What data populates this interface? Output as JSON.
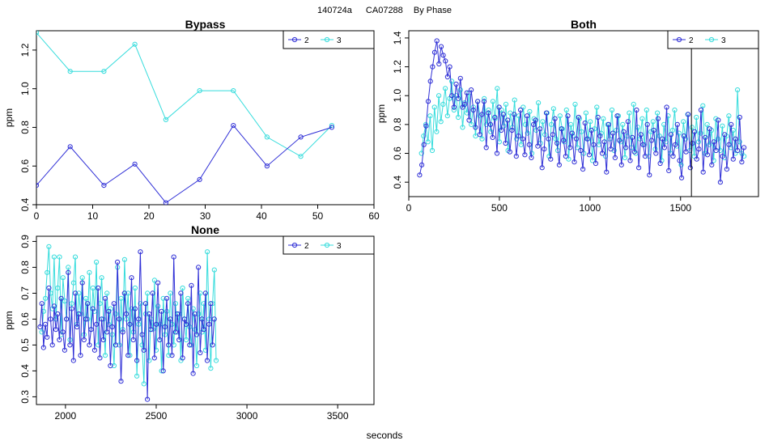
{
  "figure": {
    "run_id": "140724a",
    "unit_id": "CA07288",
    "group_label": "By Phase",
    "xlabel": "seconds",
    "legend_order": [
      "2",
      "3"
    ]
  },
  "colors": {
    "series_2": "#2f2fd6",
    "series_3": "#35dcdc",
    "axes": "#000000"
  },
  "chart_data": [
    {
      "type": "line",
      "title": "Bypass",
      "xlabel": "",
      "ylabel": "ppm",
      "xlim": [
        0,
        60
      ],
      "ylim": [
        0.4,
        1.3
      ],
      "xticks": [
        0,
        10,
        20,
        30,
        40,
        50,
        60
      ],
      "yticks": [
        0.4,
        0.6,
        0.8,
        1.0,
        1.2
      ],
      "legend": "top-right",
      "series": [
        {
          "name": "2",
          "x": [
            0,
            6,
            12,
            17.5,
            23,
            29,
            35,
            41,
            47,
            52.5
          ],
          "y": [
            0.5,
            0.7,
            0.5,
            0.61,
            0.41,
            0.53,
            0.81,
            0.6,
            0.75,
            0.8
          ]
        },
        {
          "name": "3",
          "x": [
            0,
            6,
            12,
            17.5,
            23,
            29,
            35,
            41,
            47,
            52.5
          ],
          "y": [
            1.29,
            1.09,
            1.09,
            1.23,
            0.84,
            0.99,
            0.99,
            0.75,
            0.65,
            0.81
          ]
        }
      ]
    },
    {
      "type": "line",
      "title": "Both",
      "xlabel": "",
      "ylabel": "ppm",
      "xlim": [
        0,
        1930
      ],
      "ylim": [
        0.3,
        1.45
      ],
      "xticks": [
        0,
        500,
        1000,
        1500
      ],
      "yticks": [
        0.4,
        0.6,
        0.8,
        1.0,
        1.2,
        1.4
      ],
      "vline_x": 1560,
      "legend": "top-right",
      "series": [
        {
          "name": "2",
          "x_range": [
            60,
            1850
          ],
          "n_points": 150,
          "y": [
            0.45,
            0.52,
            0.66,
            0.79,
            0.96,
            1.1,
            1.2,
            1.3,
            1.38,
            1.22,
            1.34,
            1.28,
            1.24,
            1.13,
            1.2,
            1.0,
            0.92,
            1.08,
            0.98,
            1.12,
            0.92,
            0.94,
            1.02,
            0.83,
            1.04,
            0.9,
            0.78,
            0.96,
            0.73,
            0.87,
            0.96,
            0.64,
            0.88,
            0.8,
            0.71,
            0.85,
            0.6,
            0.92,
            0.76,
            0.87,
            0.67,
            0.83,
            0.61,
            0.76,
            0.87,
            0.58,
            0.72,
            0.9,
            0.7,
            0.59,
            0.86,
            0.66,
            0.57,
            0.8,
            0.83,
            0.65,
            0.77,
            0.5,
            0.63,
            0.88,
            0.7,
            0.56,
            0.73,
            0.84,
            0.67,
            0.52,
            0.77,
            0.69,
            0.58,
            0.86,
            0.64,
            0.74,
            0.54,
            0.7,
            0.85,
            0.62,
            0.49,
            0.81,
            0.7,
            0.59,
            0.76,
            0.66,
            0.53,
            0.85,
            0.72,
            0.6,
            0.68,
            0.47,
            0.8,
            0.63,
            0.74,
            0.57,
            0.86,
            0.69,
            0.52,
            0.75,
            0.64,
            0.82,
            0.55,
            0.71,
            0.61,
            0.9,
            0.5,
            0.73,
            0.66,
            0.58,
            0.8,
            0.45,
            0.69,
            0.76,
            0.6,
            0.84,
            0.53,
            0.7,
            0.64,
            0.92,
            0.48,
            0.73,
            0.58,
            0.66,
            0.8,
            0.55,
            0.43,
            0.72,
            0.61,
            0.87,
            0.5,
            0.67,
            0.75,
            0.56,
            0.63,
            0.9,
            0.47,
            0.71,
            0.59,
            0.77,
            0.52,
            0.68,
            0.62,
            0.83,
            0.4,
            0.58,
            0.73,
            0.49,
            0.66,
            0.8,
            0.56,
            0.7,
            0.62,
            0.85,
            0.54,
            0.64
          ]
        },
        {
          "name": "3",
          "x_range": [
            70,
            1850
          ],
          "n_points": 150,
          "y": [
            0.6,
            0.72,
            0.8,
            0.68,
            0.86,
            0.62,
            0.92,
            0.75,
            1.0,
            0.82,
            0.94,
            1.05,
            0.86,
            0.98,
            1.1,
            0.9,
            1.0,
            0.85,
            1.04,
            0.78,
            0.95,
            0.88,
            1.02,
            0.8,
            0.92,
            0.72,
            0.96,
            0.86,
            0.7,
            0.98,
            0.8,
            0.9,
            0.75,
            0.96,
            0.84,
            1.05,
            0.68,
            0.9,
            0.79,
            0.94,
            0.62,
            0.88,
            0.78,
            0.97,
            0.7,
            0.86,
            0.66,
            0.92,
            0.8,
            0.74,
            0.89,
            0.6,
            0.84,
            0.76,
            0.95,
            0.67,
            0.82,
            0.73,
            0.88,
            0.58,
            0.8,
            0.91,
            0.7,
            0.62,
            0.86,
            0.77,
            0.68,
            0.9,
            0.56,
            0.8,
            0.72,
            0.94,
            0.64,
            0.84,
            0.75,
            0.6,
            0.88,
            0.7,
            0.82,
            0.55,
            0.77,
            0.92,
            0.66,
            0.74,
            0.84,
            0.58,
            0.8,
            0.7,
            0.9,
            0.62,
            0.76,
            0.86,
            0.68,
            0.8,
            0.57,
            0.72,
            0.88,
            0.64,
            0.94,
            0.6,
            0.78,
            0.7,
            0.84,
            0.66,
            0.9,
            0.58,
            0.75,
            0.82,
            0.63,
            0.88,
            0.72,
            0.55,
            0.8,
            0.68,
            0.86,
            0.6,
            0.76,
            0.9,
            0.65,
            0.74,
            0.52,
            0.82,
            0.7,
            0.87,
            0.62,
            0.78,
            0.58,
            0.85,
            0.68,
            0.74,
            0.93,
            0.6,
            0.8,
            0.66,
            0.76,
            0.55,
            0.84,
            0.7,
            0.62,
            0.79,
            0.57,
            0.72,
            0.86,
            0.64,
            0.76,
            0.6,
            1.04,
            0.68,
            0.6,
            0.58
          ]
        }
      ]
    },
    {
      "type": "line",
      "title": "None",
      "xlabel": "seconds",
      "ylabel": "ppm",
      "xlim": [
        1840,
        3700
      ],
      "ylim": [
        0.27,
        0.92
      ],
      "xticks": [
        2000,
        2500,
        3000,
        3500
      ],
      "yticks": [
        0.3,
        0.4,
        0.5,
        0.6,
        0.7,
        0.8,
        0.9
      ],
      "legend": "top-right",
      "series": [
        {
          "name": "2",
          "x_range": [
            1860,
            2820
          ],
          "n_points": 100,
          "y": [
            0.57,
            0.66,
            0.49,
            0.58,
            0.53,
            0.72,
            0.6,
            0.5,
            0.65,
            0.56,
            0.62,
            0.52,
            0.68,
            0.55,
            0.48,
            0.6,
            0.78,
            0.5,
            0.64,
            0.44,
            0.7,
            0.57,
            0.62,
            0.46,
            0.74,
            0.52,
            0.6,
            0.66,
            0.5,
            0.56,
            0.64,
            0.48,
            0.58,
            0.72,
            0.45,
            0.6,
            0.52,
            0.68,
            0.55,
            0.63,
            0.42,
            0.57,
            0.66,
            0.5,
            0.82,
            0.6,
            0.36,
            0.55,
            0.7,
            0.62,
            0.46,
            0.58,
            0.76,
            0.52,
            0.64,
            0.44,
            0.6,
            0.86,
            0.54,
            0.48,
            0.66,
            0.29,
            0.62,
            0.56,
            0.7,
            0.45,
            0.58,
            0.74,
            0.52,
            0.63,
            0.4,
            0.57,
            0.68,
            0.5,
            0.6,
            0.46,
            0.84,
            0.55,
            0.62,
            0.52,
            0.7,
            0.45,
            0.6,
            0.58,
            0.66,
            0.5,
            0.73,
            0.39,
            0.62,
            0.54,
            0.8,
            0.47,
            0.6,
            0.56,
            0.7,
            0.44,
            0.58,
            0.66,
            0.5,
            0.6
          ]
        },
        {
          "name": "3",
          "x_range": [
            1870,
            2830
          ],
          "n_points": 100,
          "y": [
            0.55,
            0.63,
            0.68,
            0.78,
            0.88,
            0.7,
            0.64,
            0.84,
            0.6,
            0.72,
            0.84,
            0.54,
            0.76,
            0.67,
            0.6,
            0.8,
            0.52,
            0.66,
            0.74,
            0.84,
            0.58,
            0.7,
            0.62,
            0.76,
            0.54,
            0.68,
            0.6,
            0.78,
            0.56,
            0.72,
            0.63,
            0.82,
            0.5,
            0.66,
            0.76,
            0.6,
            0.46,
            0.7,
            0.58,
            0.64,
            0.54,
            0.42,
            0.62,
            0.8,
            0.5,
            0.68,
            0.56,
            0.83,
            0.6,
            0.7,
            0.46,
            0.64,
            0.55,
            0.72,
            0.38,
            0.58,
            0.66,
            0.5,
            0.35,
            0.62,
            0.7,
            0.44,
            0.6,
            0.56,
            0.75,
            0.48,
            0.65,
            0.58,
            0.4,
            0.68,
            0.54,
            0.63,
            0.46,
            0.7,
            0.58,
            0.5,
            0.66,
            0.55,
            0.62,
            0.44,
            0.72,
            0.6,
            0.52,
            0.68,
            0.57,
            0.5,
            0.64,
            0.56,
            0.42,
            0.62,
            0.7,
            0.55,
            0.66,
            0.48,
            0.86,
            0.6,
            0.41,
            0.66,
            0.79,
            0.44
          ]
        }
      ]
    }
  ]
}
